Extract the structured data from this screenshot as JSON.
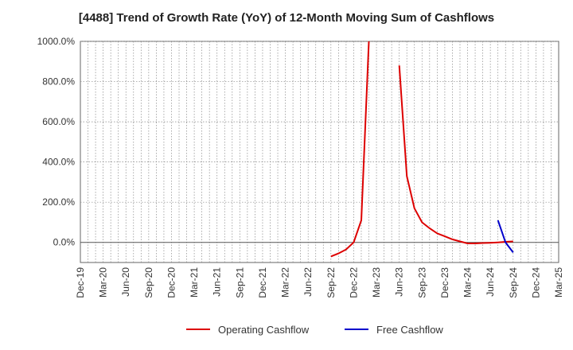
{
  "chart_data": {
    "type": "line",
    "title": "[4488]  Trend of Growth Rate (YoY) of 12-Month Moving Sum of Cashflows",
    "xlabel": "",
    "ylabel": "",
    "ylim": [
      -100,
      1000
    ],
    "y_ticks": [
      {
        "value": 1000,
        "label": "1000.0%"
      },
      {
        "value": 800,
        "label": "800.0%"
      },
      {
        "value": 600,
        "label": "600.0%"
      },
      {
        "value": 400,
        "label": "400.0%"
      },
      {
        "value": 200,
        "label": "200.0%"
      },
      {
        "value": 0,
        "label": "0.0%"
      }
    ],
    "x_range": [
      "2019-12",
      "2025-03"
    ],
    "x_ticks": [
      "Dec-19",
      "Mar-20",
      "Jun-20",
      "Sep-20",
      "Dec-20",
      "Mar-21",
      "Jun-21",
      "Sep-21",
      "Dec-21",
      "Mar-22",
      "Jun-22",
      "Sep-22",
      "Dec-22",
      "Mar-23",
      "Jun-23",
      "Sep-23",
      "Dec-23",
      "Mar-24",
      "Jun-24",
      "Sep-24",
      "Dec-24",
      "Mar-25"
    ],
    "grid": true,
    "legend_position": "bottom",
    "series": [
      {
        "name": "Operating Cashflow",
        "color": "#dd0000",
        "points": [
          [
            "2022-09",
            -70
          ],
          [
            "2022-10",
            -55
          ],
          [
            "2022-11",
            -35
          ],
          [
            "2022-12",
            0
          ],
          [
            "2023-01",
            110
          ],
          [
            "2023-02",
            1000
          ],
          [
            null,
            null
          ],
          [
            "2023-06",
            880
          ],
          [
            "2023-07",
            330
          ],
          [
            "2023-08",
            170
          ],
          [
            "2023-09",
            100
          ],
          [
            "2023-10",
            70
          ],
          [
            "2023-11",
            45
          ],
          [
            "2023-12",
            30
          ],
          [
            "2024-01",
            15
          ],
          [
            "2024-02",
            5
          ],
          [
            "2024-03",
            -5
          ],
          [
            "2024-04",
            -5
          ],
          [
            "2024-05",
            -3
          ],
          [
            "2024-06",
            -2
          ],
          [
            "2024-07",
            0
          ],
          [
            "2024-08",
            3
          ],
          [
            "2024-09",
            5
          ]
        ]
      },
      {
        "name": "Free Cashflow",
        "color": "#0000cc",
        "points": [
          [
            "2024-07",
            110
          ],
          [
            "2024-08",
            0
          ],
          [
            "2024-09",
            -50
          ]
        ]
      }
    ]
  }
}
